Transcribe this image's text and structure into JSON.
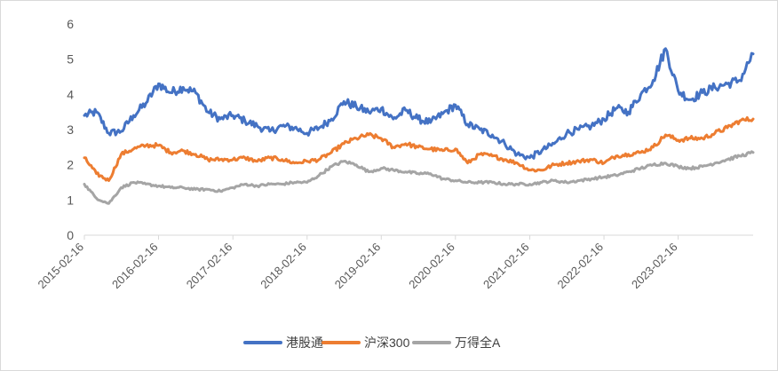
{
  "chart_data": {
    "type": "line",
    "title": "",
    "xlabel": "",
    "ylabel": "",
    "ylim": [
      0,
      6
    ],
    "yticks": [
      0,
      1,
      2,
      3,
      4,
      5,
      6
    ],
    "xticks": [
      "2015-02-16",
      "2016-02-16",
      "2017-02-16",
      "2018-02-16",
      "2019-02-16",
      "2020-02-16",
      "2021-02-16",
      "2022-02-16",
      "2023-02-16"
    ],
    "xlim": [
      "2015-02-16",
      "2024-02-20"
    ],
    "grid": false,
    "legend_position": "bottom",
    "x": [
      "2015-02-16",
      "2015-04-16",
      "2015-06-16",
      "2015-08-16",
      "2015-10-16",
      "2015-12-16",
      "2016-02-16",
      "2016-04-16",
      "2016-06-16",
      "2016-08-16",
      "2016-10-16",
      "2016-12-16",
      "2017-02-16",
      "2017-04-16",
      "2017-06-16",
      "2017-08-16",
      "2017-10-16",
      "2017-12-16",
      "2018-02-16",
      "2018-04-16",
      "2018-06-16",
      "2018-08-16",
      "2018-10-16",
      "2018-12-16",
      "2019-02-16",
      "2019-04-16",
      "2019-06-16",
      "2019-08-16",
      "2019-10-16",
      "2019-12-16",
      "2020-02-16",
      "2020-04-16",
      "2020-06-16",
      "2020-08-16",
      "2020-10-16",
      "2020-12-16",
      "2021-02-16",
      "2021-04-16",
      "2021-06-16",
      "2021-08-16",
      "2021-10-16",
      "2021-12-16",
      "2022-02-16",
      "2022-04-16",
      "2022-06-16",
      "2022-08-16",
      "2022-10-16",
      "2022-12-16",
      "2023-02-16",
      "2023-04-16",
      "2023-06-16",
      "2023-08-16",
      "2023-10-16",
      "2023-12-16",
      "2024-02-20"
    ],
    "series": [
      {
        "name": "港股通",
        "color": "#4472c4",
        "values": [
          3.4,
          3.5,
          2.9,
          2.95,
          3.4,
          3.75,
          4.3,
          4.05,
          4.2,
          4.05,
          3.5,
          3.3,
          3.4,
          3.25,
          3.1,
          2.95,
          3.1,
          3.05,
          2.9,
          3.05,
          3.3,
          3.8,
          3.65,
          3.5,
          3.6,
          3.3,
          3.55,
          3.3,
          3.2,
          3.45,
          3.7,
          3.15,
          3.0,
          2.85,
          2.6,
          2.3,
          2.2,
          2.4,
          2.6,
          2.9,
          3.0,
          3.1,
          3.3,
          3.6,
          3.5,
          4.0,
          4.4,
          5.3,
          4.1,
          3.85,
          4.05,
          4.2,
          4.3,
          4.4,
          5.15
        ]
      },
      {
        "name": "沪深300",
        "color": "#ed7d31",
        "values": [
          2.2,
          1.75,
          1.55,
          2.3,
          2.45,
          2.55,
          2.55,
          2.35,
          2.4,
          2.3,
          2.15,
          2.15,
          2.15,
          2.2,
          2.1,
          2.2,
          2.15,
          2.05,
          2.1,
          2.15,
          2.35,
          2.6,
          2.75,
          2.85,
          2.75,
          2.5,
          2.6,
          2.5,
          2.45,
          2.4,
          2.45,
          2.05,
          2.3,
          2.25,
          2.15,
          2.05,
          1.85,
          1.85,
          2.0,
          2.05,
          2.1,
          2.15,
          2.05,
          2.25,
          2.3,
          2.35,
          2.5,
          2.85,
          2.7,
          2.75,
          2.75,
          2.9,
          3.05,
          3.25,
          3.3
        ]
      },
      {
        "name": "万得全A",
        "color": "#a5a5a5",
        "values": [
          1.45,
          1.05,
          0.9,
          1.35,
          1.5,
          1.45,
          1.4,
          1.35,
          1.35,
          1.3,
          1.3,
          1.25,
          1.35,
          1.45,
          1.4,
          1.45,
          1.45,
          1.5,
          1.5,
          1.7,
          1.95,
          2.1,
          2.0,
          1.8,
          1.9,
          1.85,
          1.8,
          1.75,
          1.75,
          1.6,
          1.55,
          1.5,
          1.5,
          1.5,
          1.45,
          1.45,
          1.45,
          1.5,
          1.55,
          1.5,
          1.55,
          1.6,
          1.65,
          1.7,
          1.8,
          1.9,
          2.0,
          2.05,
          1.95,
          1.9,
          1.95,
          2.05,
          2.15,
          2.25,
          2.35
        ]
      }
    ]
  }
}
